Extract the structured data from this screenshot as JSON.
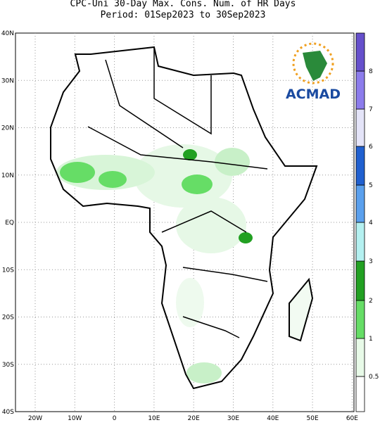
{
  "title": {
    "line1": "CPC-Uni 30-Day Max. Cons. Num. of HR Days",
    "line2": "Period: 01Sep2023 to 30Sep2023"
  },
  "map": {
    "lat_labels": [
      "40N",
      "30N",
      "20N",
      "10N",
      "EQ",
      "10S",
      "20S",
      "30S",
      "40S"
    ],
    "lon_labels": [
      "20W",
      "10W",
      "0",
      "10E",
      "20E",
      "30E",
      "40E",
      "50E",
      "60E"
    ]
  },
  "logo": {
    "text": "ACMAD"
  },
  "legend": {
    "labels": [
      "0.5",
      "1",
      "2",
      "3",
      "4",
      "5",
      "6",
      "7",
      "8"
    ],
    "colors": [
      "#ffffff",
      "#e8fae8",
      "#66dd66",
      "#22a022",
      "#b4f0f0",
      "#5aa0ee",
      "#2060d0",
      "#e4e4f8",
      "#8c7cec",
      "#6650cc"
    ]
  }
}
